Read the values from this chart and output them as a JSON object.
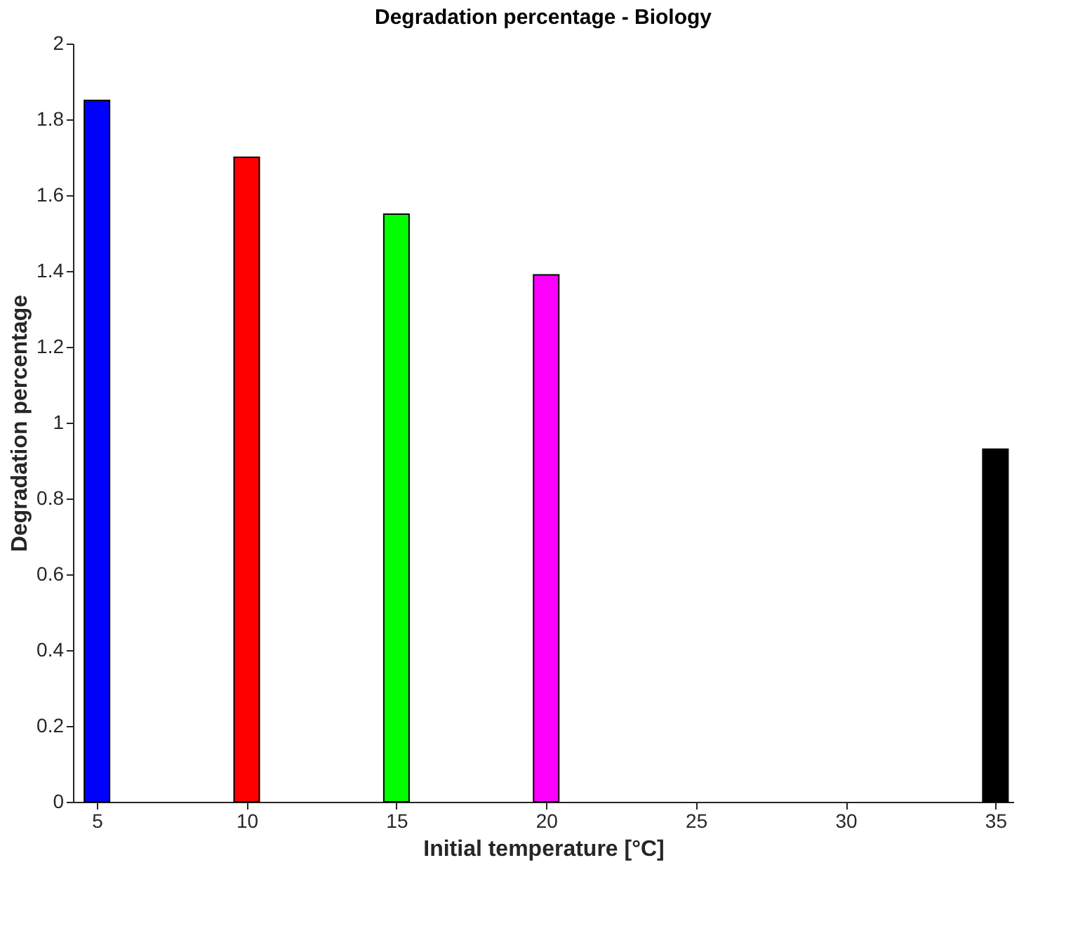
{
  "chart_data": {
    "type": "bar",
    "title": "Degradation percentage - Biology",
    "xlabel": "Initial temperature [°C]",
    "ylabel": "Degradation percentage",
    "x": [
      5,
      10,
      15,
      20,
      35
    ],
    "values": [
      1.85,
      1.7,
      1.55,
      1.39,
      0.93
    ],
    "colors": [
      "#0000ff",
      "#ff0000",
      "#00ff00",
      "#ff00ff",
      "#000000"
    ],
    "xlim": [
      4.2,
      35.6
    ],
    "xticks": [
      5,
      10,
      15,
      20,
      25,
      30,
      35
    ],
    "ylim": [
      0,
      2
    ],
    "yticks": [
      0,
      0.2,
      0.4,
      0.6,
      0.8,
      1,
      1.2,
      1.4,
      1.6,
      1.8,
      2
    ],
    "grid": false,
    "legend": false
  }
}
